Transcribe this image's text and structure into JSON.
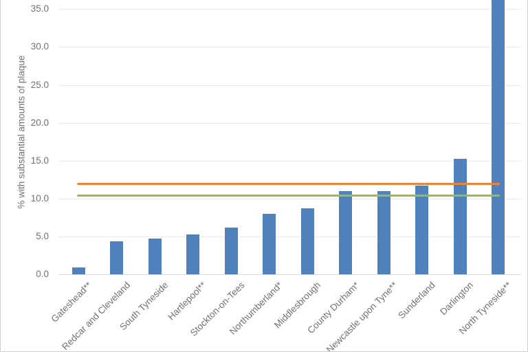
{
  "chart_data": {
    "type": "bar",
    "ylabel": "% with substantial amounts of plaque",
    "categories": [
      "Gateshead**",
      "Redcar and Cleveland",
      "South Tyneside",
      "Hartlepool**",
      "Stockton-on-Tees",
      "Northumberland*",
      "Middlesbrough",
      "County Durham*",
      "Newcastle upon Tyne**",
      "Sunderland",
      "Darlington",
      "North Tyneside**"
    ],
    "values": [
      0.9,
      4.4,
      4.7,
      5.3,
      6.2,
      8.0,
      8.7,
      11.0,
      11.0,
      11.7,
      15.2,
      37.0
    ],
    "yticks": {
      "values": [
        0,
        5,
        10,
        15,
        20,
        25,
        30,
        35
      ],
      "labels": [
        "0.0",
        "5.0",
        "10.0",
        "15.0",
        "20.0",
        "25.0",
        "30.0",
        "35.0"
      ]
    },
    "ylim": [
      0,
      36.2
    ],
    "grid": true,
    "reference_lines": [
      {
        "name": "orange-reference-line",
        "value": 11.9,
        "color": "#ee8435"
      },
      {
        "name": "green-reference-line",
        "value": 10.4,
        "color": "#9cbb46"
      }
    ],
    "bar_color": "#4f81bd",
    "gridline_color": "#e9e9e9",
    "axis_text_color": "#717171",
    "frame_border_color": "#cfcfcf",
    "note": "Chart is cropped at the top of the screenshot: the North Tyneside** bar extends beyond the visible area (plotted here as 37; true top not visible). Longest rotated x labels are clipped by the bottom edge."
  }
}
